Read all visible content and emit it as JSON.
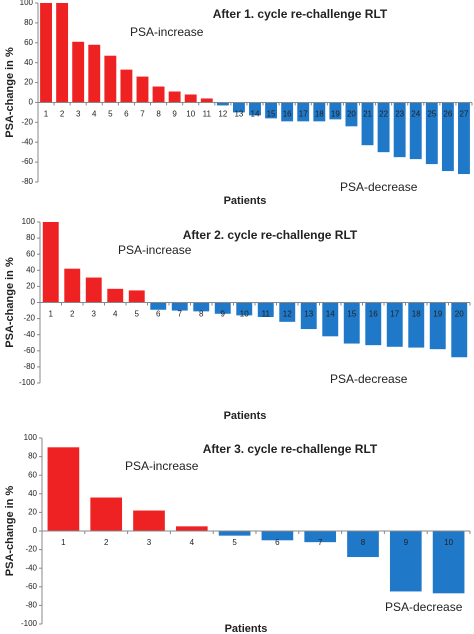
{
  "chart_data": [
    {
      "type": "bar",
      "title": "After 1. cycle re-challenge  RLT",
      "ylabel": "PSA-change in %",
      "xlabel": "Patients",
      "annotations": [
        "PSA-increase",
        "PSA-decrease"
      ],
      "categories": [
        "1",
        "2",
        "3",
        "4",
        "5",
        "6",
        "7",
        "8",
        "9",
        "10",
        "11",
        "12",
        "13",
        "14",
        "15",
        "16",
        "17",
        "18",
        "19",
        "20",
        "21",
        "22",
        "23",
        "24",
        "25",
        "26",
        "27"
      ],
      "values": [
        100,
        100,
        61,
        58,
        47,
        33,
        26,
        16,
        11,
        8,
        4,
        -3,
        -10,
        -13,
        -16,
        -19,
        -19,
        -19,
        -17,
        -24,
        -43,
        -50,
        -55,
        -57,
        -62,
        -69,
        -72
      ],
      "positive_color": "#ee2222",
      "negative_color": "#1f78c8",
      "ylim": [
        -80,
        100
      ],
      "yticks": [
        -80,
        -60,
        -40,
        -20,
        0,
        20,
        40,
        60,
        80,
        100
      ]
    },
    {
      "type": "bar",
      "title": "After 2. cycle re-challenge  RLT",
      "ylabel": "PSA-change in %",
      "xlabel": "Patients",
      "annotations": [
        "PSA-increase",
        "PSA-decrease"
      ],
      "categories": [
        "1",
        "2",
        "3",
        "4",
        "5",
        "6",
        "7",
        "8",
        "9",
        "10",
        "11",
        "12",
        "13",
        "14",
        "15",
        "16",
        "17",
        "18",
        "19",
        "20"
      ],
      "values": [
        100,
        42,
        31,
        17,
        15,
        -9,
        -10,
        -11,
        -14,
        -16,
        -18,
        -24,
        -33,
        -42,
        -51,
        -53,
        -55,
        -56,
        -58,
        -68
      ],
      "positive_color": "#ee2222",
      "negative_color": "#1f78c8",
      "ylim": [
        -100,
        100
      ],
      "yticks": [
        -100,
        -80,
        -60,
        -40,
        -20,
        0,
        20,
        40,
        60,
        80,
        100
      ]
    },
    {
      "type": "bar",
      "title": "After 3. cycle re-challenge  RLT",
      "ylabel": "PSA-change in %",
      "xlabel": "Patients",
      "annotations": [
        "PSA-increase",
        "PSA-decrease"
      ],
      "categories": [
        "1",
        "2",
        "3",
        "4",
        "5",
        "6",
        "7",
        "8",
        "9",
        "10"
      ],
      "values": [
        90,
        36,
        22,
        5,
        -5,
        -10,
        -12,
        -28,
        -65,
        -67
      ],
      "positive_color": "#ee2222",
      "negative_color": "#1f78c8",
      "ylim": [
        -100,
        100
      ],
      "yticks": [
        -100,
        -80,
        -60,
        -40,
        -20,
        0,
        20,
        40,
        60,
        80,
        100
      ]
    }
  ]
}
